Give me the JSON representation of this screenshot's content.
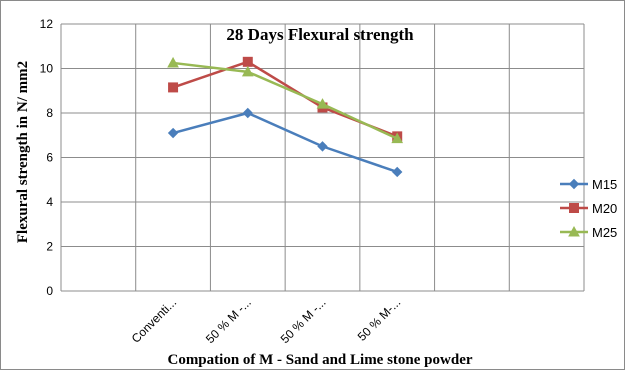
{
  "chart_data": {
    "type": "line",
    "title": "28 Days Flexural strength",
    "xlabel": "Compation of M - Sand and Lime stone powder",
    "ylabel": "Flexural strength in N/ mm2",
    "categories": [
      "Conventi...",
      "50 % M -...",
      "50 % M -...",
      "50 % M-..."
    ],
    "ylim": [
      0,
      12
    ],
    "yticks": [
      0,
      2,
      4,
      6,
      8,
      10,
      12
    ],
    "grid": true,
    "legend_position": "right",
    "series": [
      {
        "name": "M15",
        "values": [
          7.1,
          8.0,
          6.5,
          5.35
        ],
        "color": "#4a7ebb",
        "marker": "diamond"
      },
      {
        "name": "M20",
        "values": [
          9.15,
          10.3,
          8.25,
          6.95
        ],
        "color": "#be4b48",
        "marker": "square"
      },
      {
        "name": "M25",
        "values": [
          10.25,
          9.85,
          8.4,
          6.85
        ],
        "color": "#98b954",
        "marker": "triangle"
      }
    ]
  }
}
